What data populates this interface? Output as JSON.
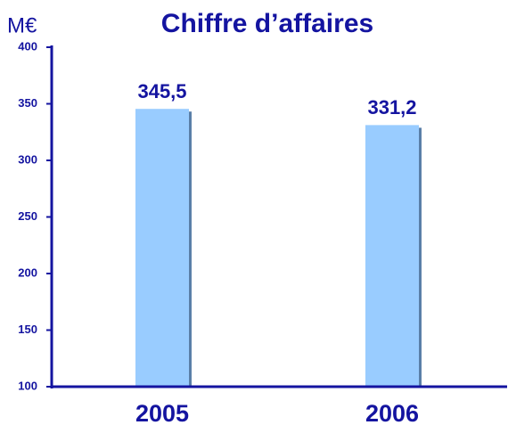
{
  "chart_data": {
    "type": "bar",
    "title": "Chiffre d’affaires",
    "y_label": "M€",
    "categories": [
      "2005",
      "2006"
    ],
    "values": [
      345.5,
      331.2
    ],
    "value_labels": [
      "345,5",
      "331,2"
    ],
    "color": "#99ccff",
    "ylim": [
      100,
      400
    ],
    "yticks": [
      100,
      150,
      200,
      250,
      300,
      350,
      400
    ],
    "grid": false
  }
}
